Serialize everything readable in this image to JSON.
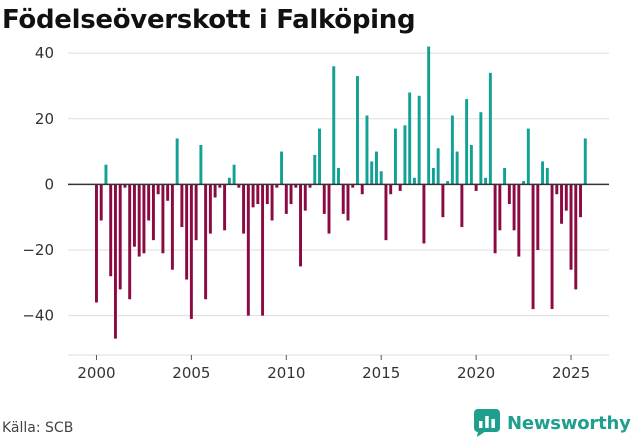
{
  "title": "Födelseöverskott i Falköping",
  "source": "Källa: SCB",
  "brand": {
    "name": "Newsworthy",
    "icon": "newsworthy-logo-icon"
  },
  "colors": {
    "positive": "#12a195",
    "negative": "#8c0a42",
    "grid": "#dddddd",
    "zero_line": "#333333"
  },
  "chart_data": {
    "type": "bar",
    "title": "Födelseöverskott i Falköping",
    "xlabel": "",
    "ylabel": "",
    "ylim": [
      -52,
      44
    ],
    "xlim": [
      1998.5,
      2027.0
    ],
    "yticks": [
      40,
      20,
      0,
      -20,
      -40
    ],
    "ytick_labels": [
      "40",
      "20",
      "0",
      "−20",
      "−40"
    ],
    "xticks": [
      2000,
      2005,
      2010,
      2015,
      2020,
      2025
    ],
    "xtick_labels": [
      "2000",
      "2005",
      "2010",
      "2015",
      "2020",
      "2025"
    ],
    "grid": "horizontal",
    "series": [
      {
        "name": "Födelseöverskott",
        "x": [
          2000.0,
          2000.25,
          2000.5,
          2000.75,
          2001.0,
          2001.25,
          2001.5,
          2001.75,
          2002.0,
          2002.25,
          2002.5,
          2002.75,
          2003.0,
          2003.25,
          2003.5,
          2003.75,
          2004.0,
          2004.25,
          2004.5,
          2004.75,
          2005.0,
          2005.25,
          2005.5,
          2005.75,
          2006.0,
          2006.25,
          2006.5,
          2006.75,
          2007.0,
          2007.25,
          2007.5,
          2007.75,
          2008.0,
          2008.25,
          2008.5,
          2008.75,
          2009.0,
          2009.25,
          2009.5,
          2009.75,
          2010.0,
          2010.25,
          2010.5,
          2010.75,
          2011.0,
          2011.25,
          2011.5,
          2011.75,
          2012.0,
          2012.25,
          2012.5,
          2012.75,
          2013.0,
          2013.25,
          2013.5,
          2013.75,
          2014.0,
          2014.25,
          2014.5,
          2014.75,
          2015.0,
          2015.25,
          2015.5,
          2015.75,
          2016.0,
          2016.25,
          2016.5,
          2016.75,
          2017.0,
          2017.25,
          2017.5,
          2017.75,
          2018.0,
          2018.25,
          2018.5,
          2018.75,
          2019.0,
          2019.25,
          2019.5,
          2019.75,
          2020.0,
          2020.25,
          2020.5,
          2020.75,
          2021.0,
          2021.25,
          2021.5,
          2021.75,
          2022.0,
          2022.25,
          2022.5,
          2022.75,
          2023.0,
          2023.25,
          2023.5,
          2023.75,
          2024.0,
          2024.25,
          2024.5,
          2024.75,
          2025.0,
          2025.25,
          2025.5,
          2025.75
        ],
        "values": [
          -36,
          -11,
          6,
          -28,
          -47,
          -32,
          -1,
          -35,
          -19,
          -22,
          -21,
          -11,
          -17,
          -3,
          -21,
          -5,
          -26,
          14,
          -13,
          -29,
          -41,
          -17,
          12,
          -35,
          -15,
          -4,
          -1,
          -14,
          2,
          6,
          -1,
          -15,
          -40,
          -7,
          -6,
          -40,
          -6,
          -11,
          -1,
          10,
          -9,
          -6,
          -1,
          -25,
          -8,
          -1,
          9,
          17,
          -9,
          -15,
          36,
          5,
          -9,
          -11,
          -1,
          33,
          -3,
          21,
          7,
          10,
          4,
          -17,
          -3,
          17,
          -2,
          18,
          28,
          2,
          27,
          -18,
          42,
          5,
          11,
          -10,
          1,
          21,
          10,
          -13,
          26,
          12,
          -2,
          22,
          2,
          34,
          -21,
          -14,
          5,
          -6,
          -14,
          -22,
          1,
          17,
          -38,
          -20,
          7,
          5,
          -38,
          -3,
          -12,
          -8,
          -26,
          -32,
          -10,
          14
        ]
      }
    ]
  }
}
